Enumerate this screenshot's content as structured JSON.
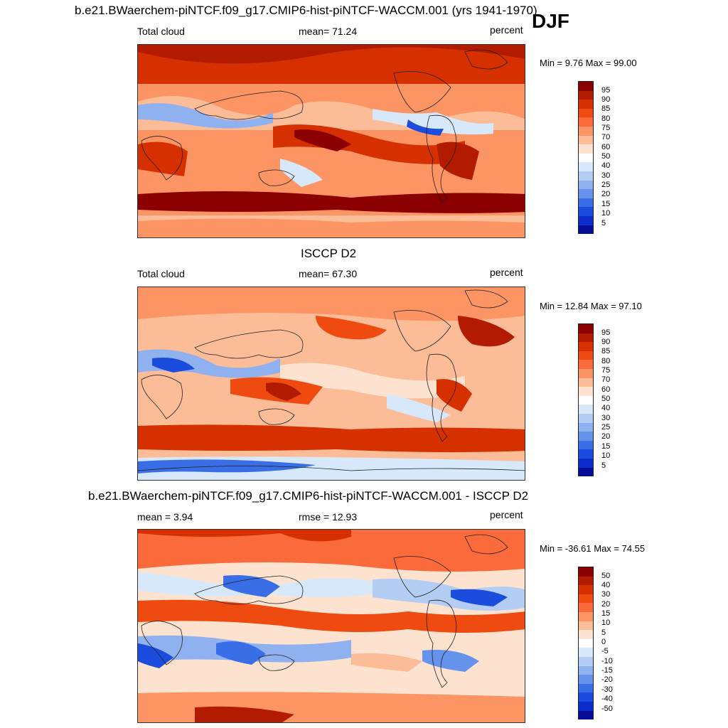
{
  "figure": {
    "season": "DJF",
    "unit": "percent"
  },
  "panels": [
    {
      "title": "b.e21.BWaerchem-piNTCF.f09_g17.CMIP6-hist-piNTCF-WACCM.001 (yrs 1941-1970)",
      "left_label": "Total cloud",
      "center_label": "mean=  71.24",
      "right_label": "percent",
      "minmax": "Min =   9.76 Max =  99.00",
      "colorbar": {
        "labels": [
          "95",
          "90",
          "85",
          "80",
          "75",
          "70",
          "60",
          "50",
          "40",
          "30",
          "25",
          "20",
          "15",
          "10",
          "5"
        ],
        "colors": [
          "#8b0000",
          "#b31b00",
          "#d62f00",
          "#ef4a10",
          "#fb6a3a",
          "#fc9464",
          "#fdbc98",
          "#fde2d0",
          "#ffffff",
          "#d8e8fb",
          "#b4cdf5",
          "#8fb1ef",
          "#6592ea",
          "#3a6ee6",
          "#1c4cdd",
          "#0c2ccc",
          "#040c96"
        ]
      },
      "overview": {
        "mean": 71.24,
        "min": 9.76,
        "max": 99.0
      }
    },
    {
      "title": "ISCCP D2",
      "left_label": "Total cloud",
      "center_label": "mean=  67.30",
      "right_label": "percent",
      "minmax": "Min =  12.84 Max =  97.10",
      "colorbar": {
        "labels": [
          "95",
          "90",
          "85",
          "80",
          "75",
          "70",
          "60",
          "50",
          "40",
          "30",
          "25",
          "20",
          "15",
          "10",
          "5"
        ],
        "colors": [
          "#8b0000",
          "#b31b00",
          "#d62f00",
          "#ef4a10",
          "#fb6a3a",
          "#fc9464",
          "#fdbc98",
          "#fde2d0",
          "#ffffff",
          "#d8e8fb",
          "#b4cdf5",
          "#8fb1ef",
          "#6592ea",
          "#3a6ee6",
          "#1c4cdd",
          "#0c2ccc",
          "#040c96"
        ]
      },
      "overview": {
        "mean": 67.3,
        "min": 12.84,
        "max": 97.1
      }
    },
    {
      "title": "b.e21.BWaerchem-piNTCF.f09_g17.CMIP6-hist-piNTCF-WACCM.001 - ISCCP D2",
      "left_label": "mean =   3.94",
      "center_label": "rmse =  12.93",
      "right_label": "percent",
      "minmax": "Min = -36.61 Max =  74.55",
      "colorbar": {
        "labels": [
          "50",
          "40",
          "30",
          "20",
          "15",
          "10",
          "5",
          "0",
          "-5",
          "-10",
          "-15",
          "-20",
          "-30",
          "-40",
          "-50"
        ],
        "colors": [
          "#8b0000",
          "#b31b00",
          "#d62f00",
          "#ef4a10",
          "#fb6a3a",
          "#fc9464",
          "#fdbc98",
          "#fde2d0",
          "#ffffff",
          "#d8e8fb",
          "#b4cdf5",
          "#8fb1ef",
          "#6592ea",
          "#3a6ee6",
          "#1c4cdd",
          "#0c2ccc",
          "#040c96"
        ]
      },
      "overview": {
        "mean": 3.94,
        "rmse": 12.93,
        "min": -36.61,
        "max": 74.55
      }
    }
  ]
}
